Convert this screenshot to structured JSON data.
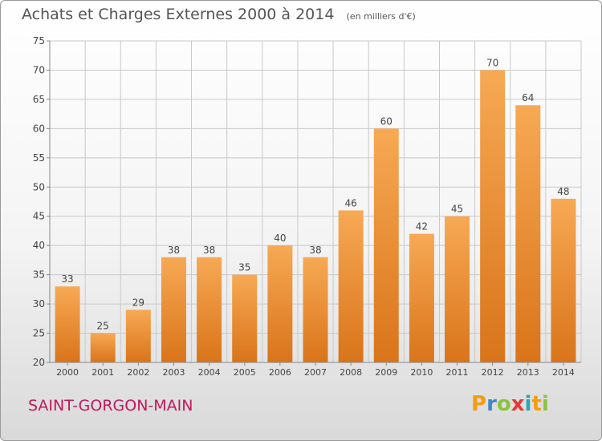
{
  "title": "Achats et Charges Externes 2000 à 2014",
  "subtitle": "(en milliers d'€)",
  "commune": "SAINT-GORGON-MAIN",
  "logo": {
    "letters": [
      "P",
      "r",
      "o",
      "x",
      "i",
      "t",
      "i"
    ],
    "colors": [
      "#f39c12",
      "#3f86c9",
      "#8ac43f",
      "#e53935",
      "#2aa6b8",
      "#f39c12",
      "#8ac43f"
    ]
  },
  "colors": {
    "bar_top": "#f7a954",
    "bar_bottom": "#d9741a",
    "grid": "#c9c9c9",
    "axis_text": "#444444"
  },
  "chart_data": {
    "type": "bar",
    "categories": [
      "2000",
      "2001",
      "2002",
      "2003",
      "2004",
      "2005",
      "2006",
      "2007",
      "2008",
      "2009",
      "2010",
      "2011",
      "2012",
      "2013",
      "2014"
    ],
    "values": [
      33,
      25,
      29,
      38,
      38,
      35,
      40,
      38,
      46,
      60,
      42,
      45,
      70,
      64,
      48
    ],
    "ylim": [
      20,
      75
    ],
    "yticks": [
      20,
      25,
      30,
      35,
      40,
      45,
      50,
      55,
      60,
      65,
      70,
      75
    ],
    "grid": true,
    "data_labels": true
  }
}
